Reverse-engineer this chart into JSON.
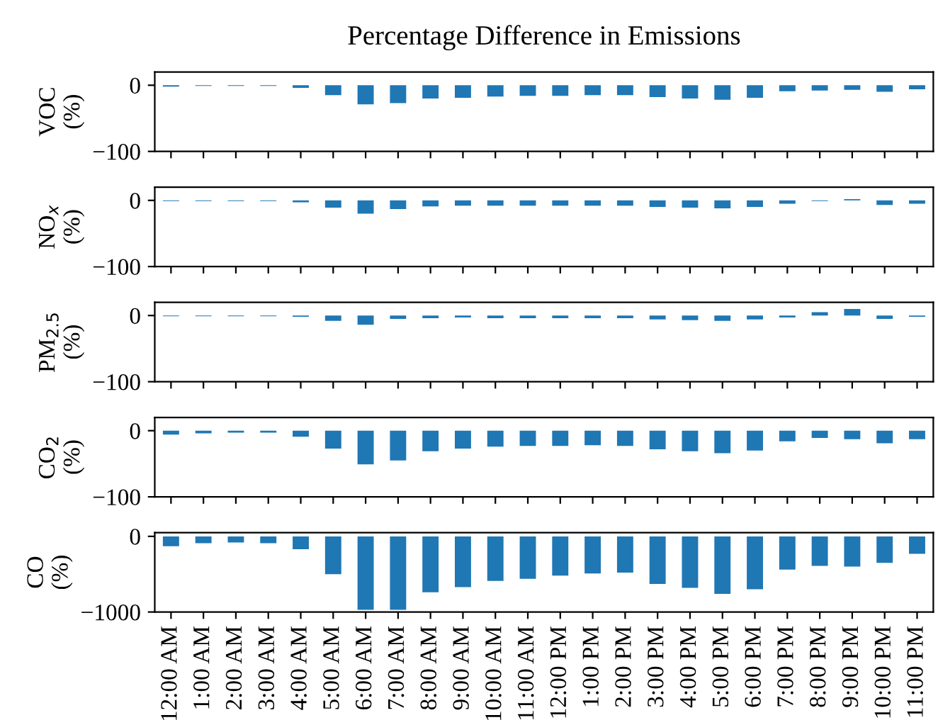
{
  "chart_data": [
    {
      "type": "bar",
      "title": "Percentage Difference in Emissions",
      "ylabel": "VOC\n(%)",
      "categories": [
        null,
        null,
        null,
        null,
        null,
        null,
        null,
        null,
        null,
        null,
        null,
        null,
        null,
        null,
        null,
        null,
        null,
        null,
        null,
        null,
        null,
        null,
        null,
        null
      ],
      "values": [
        -2,
        -1,
        -1,
        -1,
        -4,
        -15,
        -29,
        -27,
        -20,
        -19,
        -17,
        -16,
        -16,
        -15,
        -15,
        -18,
        -20,
        -22,
        -19,
        -9,
        -8,
        -7,
        -10,
        -6
      ],
      "color": "#1f77b4",
      "ylim": [
        -100,
        20
      ],
      "yticks": [
        -100,
        0
      ],
      "tick_labels": "y"
    },
    {
      "type": "bar",
      "ylabel": "NO$_{x}$\n(%)",
      "categories": [
        null,
        null,
        null,
        null,
        null,
        null,
        null,
        null,
        null,
        null,
        null,
        null,
        null,
        null,
        null,
        null,
        null,
        null,
        null,
        null,
        null,
        null,
        null,
        null
      ],
      "values": [
        -1,
        -1,
        -1,
        -1,
        -3,
        -11,
        -20,
        -13,
        -9,
        -8,
        -8,
        -8,
        -8,
        -8,
        -8,
        -10,
        -11,
        -12,
        -10,
        -5,
        -1,
        2,
        -7,
        -5
      ],
      "color": "#1f77b4",
      "ylim": [
        -100,
        20
      ],
      "yticks": [
        -100,
        0
      ],
      "tick_labels": "y"
    },
    {
      "type": "bar",
      "ylabel": "PM$_{2.5}$\n(%)",
      "categories": [
        null,
        null,
        null,
        null,
        null,
        null,
        null,
        null,
        null,
        null,
        null,
        null,
        null,
        null,
        null,
        null,
        null,
        null,
        null,
        null,
        null,
        null,
        null,
        null
      ],
      "values": [
        -1,
        -1,
        -1,
        -1,
        -2,
        -8,
        -14,
        -5,
        -4,
        -3,
        -4,
        -4,
        -4,
        -4,
        -4,
        -6,
        -7,
        -8,
        -6,
        -3,
        5,
        10,
        -5,
        -2
      ],
      "color": "#1f77b4",
      "ylim": [
        -100,
        20
      ],
      "yticks": [
        -100,
        0
      ],
      "tick_labels": "y"
    },
    {
      "type": "bar",
      "ylabel": "CO$_{2}$\n(%)",
      "categories": [
        null,
        null,
        null,
        null,
        null,
        null,
        null,
        null,
        null,
        null,
        null,
        null,
        null,
        null,
        null,
        null,
        null,
        null,
        null,
        null,
        null,
        null,
        null,
        null
      ],
      "values": [
        -6,
        -4,
        -3,
        -3,
        -9,
        -27,
        -51,
        -45,
        -31,
        -27,
        -24,
        -23,
        -23,
        -22,
        -23,
        -28,
        -31,
        -34,
        -30,
        -16,
        -11,
        -13,
        -19,
        -13
      ],
      "color": "#1f77b4",
      "ylim": [
        -100,
        20
      ],
      "yticks": [
        -100,
        0
      ],
      "tick_labels": "y"
    },
    {
      "type": "bar",
      "ylabel": "CO\n(%)",
      "categories": [
        "12:00 AM",
        "1:00 AM",
        "2:00 AM",
        "3:00 AM",
        "4:00 AM",
        "5:00 AM",
        "6:00 AM",
        "7:00 AM",
        "8:00 AM",
        "9:00 AM",
        "10:00 AM",
        "11:00 AM",
        "12:00 PM",
        "1:00 PM",
        "2:00 PM",
        "3:00 PM",
        "4:00 PM",
        "5:00 PM",
        "6:00 PM",
        "7:00 PM",
        "8:00 PM",
        "9:00 PM",
        "10:00 PM",
        "11:00 PM"
      ],
      "values": [
        -130,
        -90,
        -80,
        -90,
        -170,
        -500,
        -970,
        -970,
        -740,
        -670,
        -590,
        -560,
        -520,
        -490,
        -480,
        -630,
        -680,
        -760,
        -700,
        -440,
        -390,
        -400,
        -350,
        -230
      ],
      "color": "#1f77b4",
      "ylim": [
        -1000,
        50
      ],
      "yticks": [
        -1000,
        0
      ]
    }
  ]
}
